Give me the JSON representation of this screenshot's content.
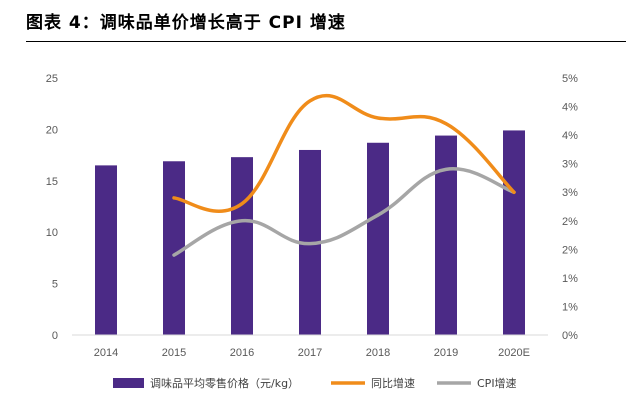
{
  "figure": {
    "title": "图表 4：调味品单价增长高于 CPI 增速"
  },
  "chart_data": {
    "type": "bar+line",
    "categories": [
      "2014",
      "2015",
      "2016",
      "2017",
      "2018",
      "2019",
      "2020E"
    ],
    "series": [
      {
        "name": "调味品平均零售价格（元/kg）",
        "type": "bar",
        "axis": "left",
        "color": "#4b2a86",
        "values": [
          16.5,
          16.9,
          17.3,
          18.0,
          18.7,
          19.4,
          19.9
        ]
      },
      {
        "name": "同比增速",
        "type": "line",
        "axis": "right",
        "color": "#f08c1a",
        "values": [
          null,
          2.4,
          2.3,
          4.1,
          3.8,
          3.7,
          2.5
        ]
      },
      {
        "name": "CPI增速",
        "type": "line",
        "axis": "right",
        "color": "#a6a6a6",
        "values": [
          null,
          1.4,
          2.0,
          1.6,
          2.1,
          2.9,
          2.5
        ]
      }
    ],
    "left_axis": {
      "ylim": [
        0,
        25
      ],
      "ticks": [
        "0",
        "5",
        "10",
        "15",
        "20",
        "25"
      ]
    },
    "right_axis": {
      "ylim": [
        0,
        4.5
      ],
      "ticks": [
        "0%",
        "1%",
        "1%",
        "2%",
        "2%",
        "3%",
        "3%",
        "4%",
        "4%",
        "5%"
      ]
    },
    "legend_position": "bottom"
  }
}
